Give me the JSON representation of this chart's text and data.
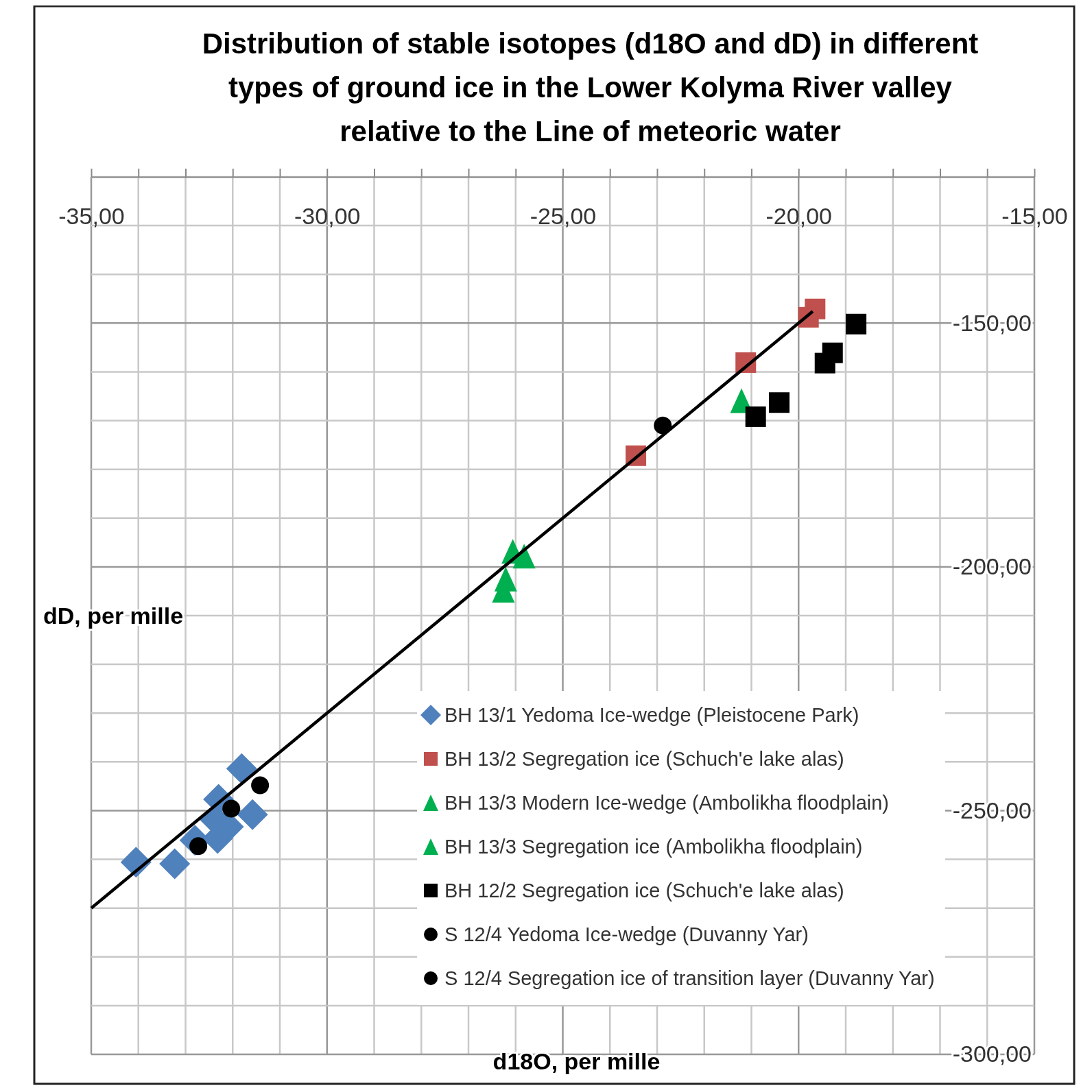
{
  "chart_data": {
    "type": "scatter",
    "title": "Distribution of stable isotopes (d18O and dD) in different types of ground ice in the Lower Kolyma River valley relative to the Line of meteoric water",
    "xlabel": "d18O, per mille",
    "ylabel": "dD, per mille",
    "xlim": [
      -35,
      -15
    ],
    "ylim": [
      -300,
      -120
    ],
    "xticks": [
      {
        "value": -35,
        "label": "-35,00"
      },
      {
        "value": -34,
        "label": null
      },
      {
        "value": -33,
        "label": null
      },
      {
        "value": -32,
        "label": null
      },
      {
        "value": -31,
        "label": null
      },
      {
        "value": -30,
        "label": "-30,00"
      },
      {
        "value": -29,
        "label": null
      },
      {
        "value": -28,
        "label": null
      },
      {
        "value": -27,
        "label": null
      },
      {
        "value": -26,
        "label": null
      },
      {
        "value": -25,
        "label": "-25,00"
      },
      {
        "value": -24,
        "label": null
      },
      {
        "value": -23,
        "label": null
      },
      {
        "value": -22,
        "label": null
      },
      {
        "value": -21,
        "label": null
      },
      {
        "value": -20,
        "label": "-20,00"
      },
      {
        "value": -19,
        "label": null
      },
      {
        "value": -18,
        "label": null
      },
      {
        "value": -17,
        "label": null
      },
      {
        "value": -16,
        "label": null
      },
      {
        "value": -15,
        "label": "-15,00"
      }
    ],
    "yticks": [
      {
        "value": -300,
        "label": "-300,00"
      },
      {
        "value": -290,
        "label": null
      },
      {
        "value": -280,
        "label": null
      },
      {
        "value": -270,
        "label": null
      },
      {
        "value": -260,
        "label": null
      },
      {
        "value": -250,
        "label": "-250,00"
      },
      {
        "value": -240,
        "label": null
      },
      {
        "value": -230,
        "label": null
      },
      {
        "value": -220,
        "label": null
      },
      {
        "value": -210,
        "label": null
      },
      {
        "value": -200,
        "label": "-200,00"
      },
      {
        "value": -190,
        "label": null
      },
      {
        "value": -180,
        "label": null
      },
      {
        "value": -170,
        "label": null
      },
      {
        "value": -160,
        "label": null
      },
      {
        "value": -150,
        "label": "-150,00"
      },
      {
        "value": -140,
        "label": null
      },
      {
        "value": -130,
        "label": null
      },
      {
        "value": -120,
        "label": null
      }
    ],
    "grid": true,
    "legend": "bottom right",
    "series": [
      {
        "type": "line",
        "color": "#000000",
        "marker": "none",
        "x": [
          -35,
          -19.7
        ],
        "values": [
          -270,
          -147.6
        ]
      },
      {
        "name": "BH 13/1 Yedoma Ice-wedge (Pleistocene Park)",
        "color": "#4f81bd",
        "marker": "diamond",
        "x": [
          -34.05,
          -33.23,
          -31.81,
          -32.3,
          -32.37,
          -32.32,
          -31.58,
          -32.09,
          -32.8
        ],
        "values": [
          -260.6,
          -260.9,
          -241.4,
          -247.7,
          -251.9,
          -255.7,
          -250.8,
          -253.3,
          -256.1
        ]
      },
      {
        "name": "BH 13/2 Segregation ice (Schuch'e lake alas)",
        "color": "#c0504d",
        "marker": "square",
        "x": [
          -19.65,
          -19.79,
          -21.12,
          -23.45
        ],
        "values": [
          -147.1,
          -148.8,
          -158.1,
          -177.2
        ]
      },
      {
        "name": "BH 13/3 Modern Ice-wedge (Ambolikha floodplain)",
        "color": "#00b050",
        "marker": "triangle",
        "x": [
          -26.06,
          -25.82,
          -26.21,
          -26.26
        ],
        "values": [
          -196.8,
          -197.8,
          -202.5,
          -204.8
        ]
      },
      {
        "name": "BH 13/3 Segregation ice (Ambolikha floodplain)",
        "color": "#00b050",
        "marker": "triangle",
        "x": [
          -21.21
        ],
        "values": [
          -165.9
        ]
      },
      {
        "name": "BH 12/2 Segregation ice (Schuch'e lake alas)",
        "color": "#000000",
        "marker": "square",
        "x": [
          -18.78,
          -19.28,
          -19.44,
          -20.41,
          -20.91
        ],
        "values": [
          -150.2,
          -156.1,
          -158.2,
          -166.3,
          -169.2
        ]
      },
      {
        "name": "S 12/4 Yedoma Ice-wedge (Duvanny Yar)",
        "color": "#000000",
        "marker": "circle",
        "x": [
          -31.42,
          -32.03,
          -32.73
        ],
        "values": [
          -244.8,
          -249.6,
          -257.3
        ]
      },
      {
        "name": "S 12/4 Segregation ice of transition layer (Duvanny Yar)",
        "color": "#000000",
        "marker": "circle",
        "x": [
          -22.88
        ],
        "values": [
          -171.0
        ]
      }
    ]
  }
}
